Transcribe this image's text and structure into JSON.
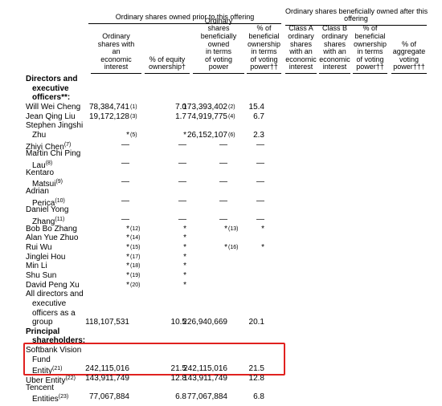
{
  "groups": [
    {
      "lines": [
        "Ordinary shares owned prior to this offering"
      ]
    },
    {
      "lines": [
        "Ordinary shares beneficially owned after this",
        "offering"
      ]
    }
  ],
  "columns": [
    {
      "lines": [
        "Ordinary",
        "shares with",
        "an",
        "economic",
        "interest"
      ]
    },
    {
      "lines": [
        "% of equity",
        "ownership†"
      ]
    },
    {
      "lines": [
        "Ordinary",
        "shares",
        "beneficially",
        "owned",
        "in terms",
        "of voting",
        "power"
      ]
    },
    {
      "lines": [
        "% of",
        "beneficial",
        "ownership",
        "in terms",
        "of voting",
        "power††"
      ]
    },
    {
      "lines": [
        "Class A",
        "ordinary",
        "shares",
        "with an",
        "economic",
        "interest"
      ]
    },
    {
      "lines": [
        "Class B",
        "ordinary",
        "shares",
        "with an",
        "economic",
        "interest"
      ]
    },
    {
      "lines": [
        "% of",
        "beneficial",
        "ownership",
        "in terms",
        "of voting",
        "power††"
      ]
    },
    {
      "lines": [
        "% of",
        "aggregate",
        "voting",
        "power†††"
      ]
    }
  ],
  "rows": [
    {
      "name": [
        "Directors and",
        "executive",
        "officers**:"
      ],
      "bold": true
    },
    {
      "name": [
        "Will Wei Cheng"
      ],
      "cells": [
        {
          "value": "78,384,741",
          "note": "(1)"
        },
        {
          "value": "7.0"
        },
        {
          "value": "173,393,402",
          "note": "(2)"
        },
        {
          "value": "15.4"
        }
      ]
    },
    {
      "name": [
        "Jean Qing Liu"
      ],
      "cells": [
        {
          "value": "19,172,128",
          "note": "(3)"
        },
        {
          "value": "1.7"
        },
        {
          "value": "74,919,775",
          "note": "(4)"
        },
        {
          "value": "6.7"
        }
      ]
    },
    {
      "name": [
        "Stephen Jingshi",
        "Zhu"
      ],
      "cells": [
        {
          "value": "*",
          "note": "(5)"
        },
        {
          "value": "*"
        },
        {
          "value": "26,152,107",
          "note": "(6)"
        },
        {
          "value": "2.3"
        }
      ]
    },
    {
      "name": [
        "Zhiyi Chen"
      ],
      "note": "(7)",
      "cells": [
        {
          "value": "—"
        },
        {
          "value": "—"
        },
        {
          "value": "—"
        },
        {
          "value": "—"
        }
      ]
    },
    {
      "name": [
        "Martin Chi Ping",
        "Lau"
      ],
      "note": "(8)",
      "cells": [
        {
          "value": "—"
        },
        {
          "value": "—"
        },
        {
          "value": "—"
        },
        {
          "value": "—"
        }
      ]
    },
    {
      "name": [
        "Kentaro",
        "Matsui"
      ],
      "note": "(9)",
      "cells": [
        {
          "value": "—"
        },
        {
          "value": "—"
        },
        {
          "value": "—"
        },
        {
          "value": "—"
        }
      ]
    },
    {
      "name": [
        "Adrian",
        "Perica"
      ],
      "note": "(10)",
      "cells": [
        {
          "value": "—"
        },
        {
          "value": "—"
        },
        {
          "value": "—"
        },
        {
          "value": "—"
        }
      ]
    },
    {
      "name": [
        "Daniel Yong",
        "Zhang"
      ],
      "note": "(11)",
      "cells": [
        {
          "value": "—"
        },
        {
          "value": "—"
        },
        {
          "value": "—"
        },
        {
          "value": "—"
        }
      ]
    },
    {
      "name": [
        "Bob Bo Zhang"
      ],
      "cells": [
        {
          "value": "*",
          "note": "(12)"
        },
        {
          "value": "*"
        },
        {
          "value": "*",
          "note": "(13)"
        },
        {
          "value": "*"
        }
      ]
    },
    {
      "name": [
        "Alan Yue Zhuo"
      ],
      "cells": [
        {
          "value": "*",
          "note": "(14)"
        },
        {
          "value": "*"
        }
      ]
    },
    {
      "name": [
        "Rui Wu"
      ],
      "cells": [
        {
          "value": "*",
          "note": "(15)"
        },
        {
          "value": "*"
        },
        {
          "value": "*",
          "note": "(16)"
        },
        {
          "value": "*"
        }
      ]
    },
    {
      "name": [
        "Jinglei Hou"
      ],
      "cells": [
        {
          "value": "*",
          "note": "(17)"
        },
        {
          "value": "*"
        }
      ]
    },
    {
      "name": [
        "Min Li"
      ],
      "cells": [
        {
          "value": "*",
          "note": "(18)"
        },
        {
          "value": "*"
        }
      ]
    },
    {
      "name": [
        "Shu Sun"
      ],
      "cells": [
        {
          "value": "*",
          "note": "(19)"
        },
        {
          "value": "*"
        }
      ]
    },
    {
      "name": [
        "David Peng Xu"
      ],
      "cells": [
        {
          "value": "*",
          "note": "(20)"
        },
        {
          "value": "*"
        }
      ]
    },
    {
      "name": [
        "All directors and",
        "executive",
        "officers as a",
        "group"
      ],
      "cells": [
        {
          "value": "118,107,531"
        },
        {
          "value": "10.5"
        },
        {
          "value": "226,940,669"
        },
        {
          "value": "20.1"
        }
      ]
    },
    {
      "name": [
        "Principal",
        "shareholders:"
      ],
      "bold": true
    },
    {
      "name": [
        "Softbank Vision",
        "Fund",
        "Entity"
      ],
      "note": "(21)",
      "highlight": true,
      "cells": [
        {
          "value": "242,115,016"
        },
        {
          "value": "21.5"
        },
        {
          "value": "242,115,016"
        },
        {
          "value": "21.5"
        }
      ]
    },
    {
      "name": [
        "Uber Entity"
      ],
      "note": "(22)",
      "cells": [
        {
          "value": "143,911,749"
        },
        {
          "value": "12.8"
        },
        {
          "value": "143,911,749"
        },
        {
          "value": "12.8"
        }
      ]
    },
    {
      "name": [
        "Tencent",
        "Entities"
      ],
      "note": "(23)",
      "cells": [
        {
          "value": "77,067,884"
        },
        {
          "value": "6.8"
        },
        {
          "value": "77,067,884"
        },
        {
          "value": "6.8"
        }
      ]
    }
  ]
}
